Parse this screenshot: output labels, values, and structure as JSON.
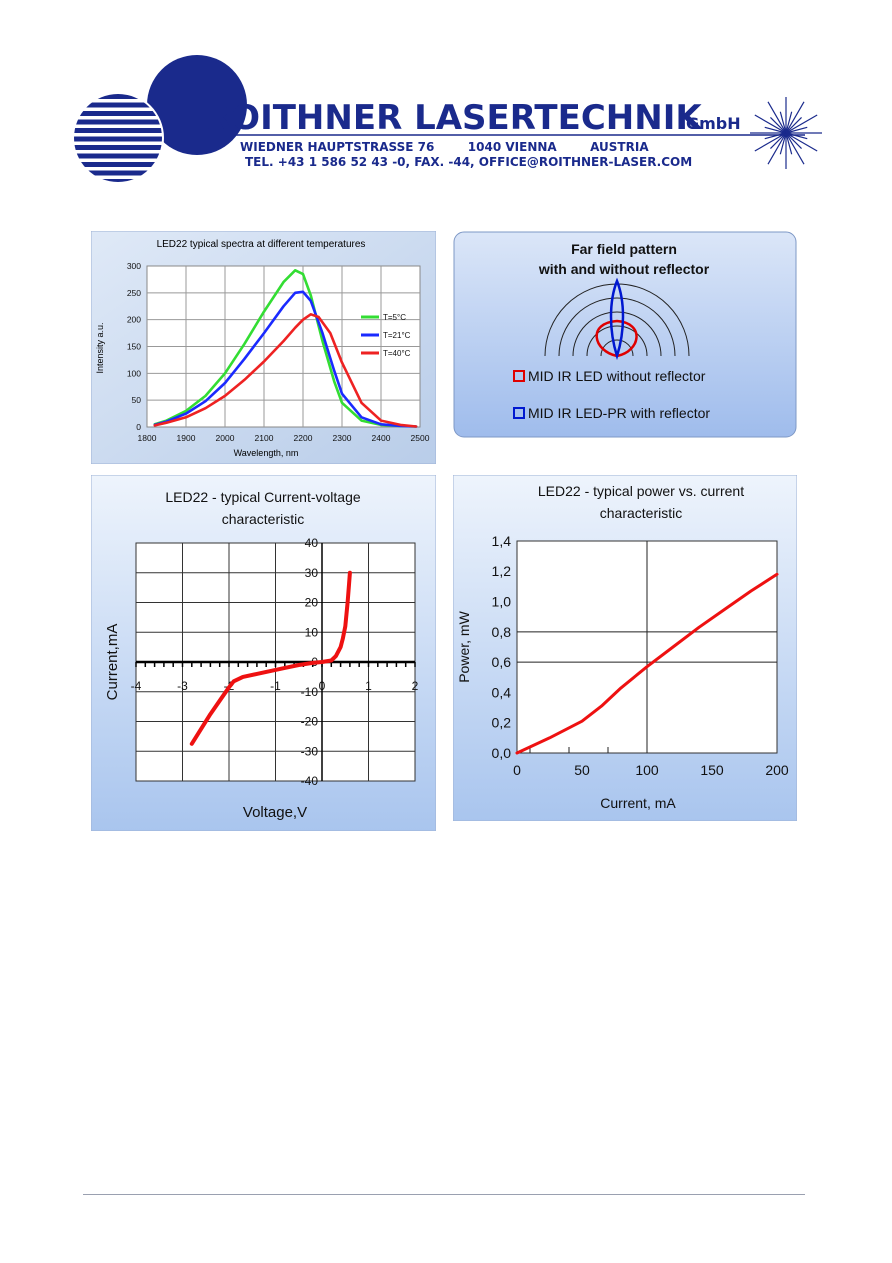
{
  "header": {
    "company": "ROITHNER LASERTECHNIK",
    "company_suffix": "GmbH",
    "address": "WIEDNER HAUPTSTRASSE 76        1040 VIENNA        AUSTRIA",
    "contact": "TEL. +43 1 586 52 43 -0, FAX. -44, OFFICE@ROITHNER-LASER.COM",
    "brand_color": "#1a2a8c"
  },
  "farfield": {
    "title_line1": "Far field pattern",
    "title_line2": "with and without reflector",
    "legend": [
      {
        "label": "MID IR LED without reflector",
        "color": "#e00000"
      },
      {
        "label": "MID IR LED-PR with reflector",
        "color": "#0018d0"
      }
    ]
  },
  "chart_data": [
    {
      "type": "line",
      "title": "LED22 typical spectra at different temperatures",
      "xlabel": "Wavelength, nm",
      "ylabel": "Intensity a.u.",
      "xlim": [
        1800,
        2500
      ],
      "ylim": [
        0,
        300
      ],
      "xticks": [
        "1800",
        "1900",
        "2000",
        "2100",
        "2200",
        "2300",
        "2400",
        "2500"
      ],
      "yticks": [
        "0",
        "50",
        "100",
        "150",
        "200",
        "250",
        "300"
      ],
      "grid": true,
      "legend_position": "right",
      "series": [
        {
          "name": "T=5°C",
          "color": "#33dd33",
          "x": [
            1820,
            1850,
            1900,
            1950,
            2000,
            2050,
            2100,
            2150,
            2180,
            2200,
            2220,
            2250,
            2280,
            2300,
            2350,
            2400,
            2450,
            2490
          ],
          "y": [
            5,
            12,
            30,
            58,
            100,
            155,
            215,
            270,
            292,
            285,
            245,
            160,
            85,
            45,
            12,
            4,
            2,
            1
          ]
        },
        {
          "name": "T=21°C",
          "color": "#1a2aff",
          "x": [
            1820,
            1850,
            1900,
            1950,
            2000,
            2050,
            2100,
            2150,
            2180,
            2200,
            2220,
            2250,
            2280,
            2300,
            2350,
            2400,
            2450,
            2490
          ],
          "y": [
            4,
            10,
            25,
            48,
            82,
            127,
            175,
            225,
            250,
            252,
            235,
            175,
            105,
            62,
            18,
            5,
            2,
            1
          ]
        },
        {
          "name": "T=40°C",
          "color": "#ee2222",
          "x": [
            1820,
            1850,
            1900,
            1950,
            2000,
            2050,
            2100,
            2150,
            2180,
            2200,
            2220,
            2240,
            2270,
            2300,
            2350,
            2400,
            2450,
            2490
          ],
          "y": [
            3,
            8,
            18,
            35,
            58,
            88,
            122,
            160,
            185,
            200,
            210,
            205,
            175,
            120,
            45,
            12,
            4,
            1
          ]
        }
      ]
    },
    {
      "type": "line",
      "title": "LED22 - typical Current-voltage characteristic",
      "title_line1": "LED22 - typical Current-voltage",
      "title_line2": "characteristic",
      "xlabel": "Voltage,V",
      "ylabel": "Current,mA",
      "xlim": [
        -4,
        2
      ],
      "ylim": [
        -40,
        40
      ],
      "xticks": [
        "-4",
        "-3",
        "-2",
        "-1",
        "0",
        "1",
        "2"
      ],
      "yticks": [
        "-40",
        "-30",
        "-20",
        "-10",
        "0",
        "10",
        "20",
        "30",
        "40"
      ],
      "grid": true,
      "series": [
        {
          "color": "#ee1111",
          "x": [
            -2.8,
            -2.6,
            -2.4,
            -2.2,
            -2.0,
            -1.9,
            -1.7,
            -1.4,
            -1.1,
            -0.8,
            -0.5,
            -0.2,
            0.0,
            0.2,
            0.3,
            0.4,
            0.45,
            0.5,
            0.55,
            0.58,
            0.6
          ],
          "y": [
            -27.5,
            -22.5,
            -17.5,
            -13,
            -8.5,
            -6.5,
            -5,
            -4,
            -3,
            -2,
            -1,
            -0.3,
            0,
            0.5,
            2,
            5,
            8,
            12,
            20,
            26,
            30
          ]
        }
      ]
    },
    {
      "type": "line",
      "title": "LED22 - typical power vs. current characteristic",
      "title_line1": "LED22 - typical power vs. current",
      "title_line2": "characteristic",
      "xlabel": "Current, mA",
      "ylabel": "Power, mW",
      "xlim": [
        0,
        200
      ],
      "ylim": [
        0,
        1.4
      ],
      "xticks": [
        "0",
        "50",
        "100",
        "150",
        "200"
      ],
      "yticks": [
        "0,0",
        "0,2",
        "0,4",
        "0,6",
        "0,8",
        "1,0",
        "1,2",
        "1,4"
      ],
      "grid": true,
      "series": [
        {
          "color": "#ee1111",
          "x": [
            0,
            25,
            50,
            65,
            80,
            100,
            120,
            140,
            160,
            180,
            200
          ],
          "y": [
            0,
            0.1,
            0.21,
            0.31,
            0.43,
            0.57,
            0.7,
            0.83,
            0.95,
            1.07,
            1.18
          ]
        }
      ]
    }
  ]
}
